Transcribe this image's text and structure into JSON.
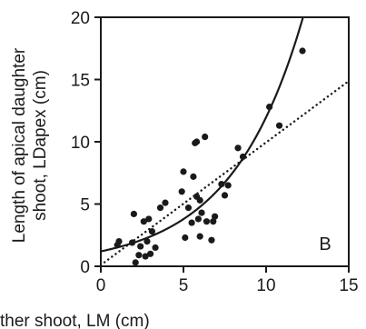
{
  "chart_data": {
    "type": "scatter",
    "panel_label": "B",
    "xlabel": "ther shoot, LM (cm)",
    "ylabel_line1": "Length of apical daughter",
    "ylabel_line2": "shoot, LDapex (cm)",
    "xlim": [
      0,
      15
    ],
    "ylim": [
      0,
      20
    ],
    "x_ticks": [
      0,
      5,
      10,
      15
    ],
    "x_tick_labels": [
      "0",
      "5",
      "10",
      "15"
    ],
    "y_ticks": [
      0,
      5,
      10,
      15,
      20
    ],
    "y_tick_labels": [
      "0",
      "5",
      "10",
      "15",
      "20"
    ],
    "grid": false,
    "points": [
      {
        "x": 1.0,
        "y": 1.7
      },
      {
        "x": 1.1,
        "y": 2.0
      },
      {
        "x": 1.9,
        "y": 1.9
      },
      {
        "x": 2.0,
        "y": 4.2
      },
      {
        "x": 2.1,
        "y": 0.3
      },
      {
        "x": 2.3,
        "y": 0.9
      },
      {
        "x": 2.4,
        "y": 1.6
      },
      {
        "x": 2.6,
        "y": 3.6
      },
      {
        "x": 2.7,
        "y": 0.8
      },
      {
        "x": 2.8,
        "y": 2.0
      },
      {
        "x": 2.9,
        "y": 3.8
      },
      {
        "x": 3.0,
        "y": 1.0
      },
      {
        "x": 3.1,
        "y": 2.8
      },
      {
        "x": 3.3,
        "y": 1.5
      },
      {
        "x": 3.6,
        "y": 4.7
      },
      {
        "x": 3.9,
        "y": 5.1
      },
      {
        "x": 4.9,
        "y": 6.0
      },
      {
        "x": 5.0,
        "y": 7.6
      },
      {
        "x": 5.1,
        "y": 2.3
      },
      {
        "x": 5.3,
        "y": 4.7
      },
      {
        "x": 5.5,
        "y": 3.5
      },
      {
        "x": 5.6,
        "y": 7.2
      },
      {
        "x": 5.7,
        "y": 9.9
      },
      {
        "x": 5.8,
        "y": 10.0
      },
      {
        "x": 5.8,
        "y": 5.6
      },
      {
        "x": 5.9,
        "y": 3.8
      },
      {
        "x": 6.0,
        "y": 5.3
      },
      {
        "x": 6.0,
        "y": 2.4
      },
      {
        "x": 6.1,
        "y": 4.3
      },
      {
        "x": 6.3,
        "y": 10.4
      },
      {
        "x": 6.4,
        "y": 3.6
      },
      {
        "x": 6.7,
        "y": 2.1
      },
      {
        "x": 6.8,
        "y": 3.6
      },
      {
        "x": 6.9,
        "y": 4.0
      },
      {
        "x": 7.3,
        "y": 6.6
      },
      {
        "x": 7.5,
        "y": 5.7
      },
      {
        "x": 7.7,
        "y": 6.5
      },
      {
        "x": 8.3,
        "y": 9.5
      },
      {
        "x": 8.6,
        "y": 8.8
      },
      {
        "x": 10.2,
        "y": 12.8
      },
      {
        "x": 10.8,
        "y": 11.3
      },
      {
        "x": 12.2,
        "y": 17.3
      }
    ],
    "curves": [
      {
        "style": "solid",
        "form": "exponential",
        "a": 1.2,
        "b": 0.23
      },
      {
        "style": "dotted",
        "form": "linear",
        "slope": 0.985,
        "intercept": 0.1
      }
    ]
  }
}
